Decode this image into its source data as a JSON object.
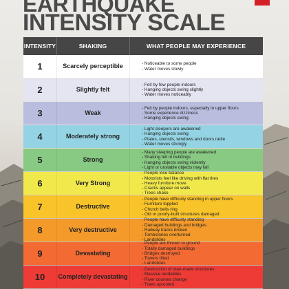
{
  "title": {
    "line1": "EARTHQUAKE",
    "line2": "INTENSITY SCALE"
  },
  "table": {
    "headers": {
      "intensity": "INTENSITY",
      "shaking": "SHAKING",
      "experience": "WHAT PEOPLE MAY EXPERIENCE"
    },
    "rows": [
      {
        "intensity": "1",
        "shaking": "Scarcely perceptible",
        "color": "#ffffff",
        "experience": [
          "- Noticeable to some people",
          "- Water moves slowly"
        ]
      },
      {
        "intensity": "2",
        "shaking": "Slightly felt",
        "color": "#e5e4f1",
        "experience": [
          "- Felt by few people indoors",
          "- Hanging objects swing slightly",
          "- Water moves noticeably"
        ]
      },
      {
        "intensity": "3",
        "shaking": "Weak",
        "color": "#b9bedf",
        "experience": [
          "- Felt by people indoors, especially in upper floors",
          "- Some experience dizziness",
          "- Hanging objects swing"
        ]
      },
      {
        "intensity": "4",
        "shaking": "Moderately strong",
        "color": "#94d3e3",
        "experience": [
          "- Light sleepers are awakened",
          "- Hanging objects swing",
          "- Plates, utensils, windows and doors rattle",
          "- Water moves strongly"
        ]
      },
      {
        "intensity": "5",
        "shaking": "Strong",
        "color": "#88c983",
        "experience": [
          "- Many sleeping people are awakened",
          "- Shaking felt in buildings",
          "- Hanging objects swing violently",
          "- Light or unstable objects may fall"
        ]
      },
      {
        "intensity": "6",
        "shaking": "Very Strong",
        "color": "#f1e94c",
        "experience": [
          "- People lose balance",
          "- Motorists feel like driving with flat tires",
          "- Heavy furniture move",
          "- Cracks appear on walls",
          "- Trees shake"
        ]
      },
      {
        "intensity": "7",
        "shaking": "Destructive",
        "color": "#f9c32a",
        "experience": [
          "- People have difficulty standing in upper floors",
          "- Furniture toppled",
          "- Church bells ring",
          "- Old or poorly-built structures damaged"
        ]
      },
      {
        "intensity": "8",
        "shaking": "Very destructive",
        "color": "#f39a2b",
        "experience": [
          "- People have difficulty standing",
          "- Damaged buildings and bridges",
          "- Railway tracks broken",
          "- Tombstones overturned",
          "- Landslides"
        ]
      },
      {
        "intensity": "9",
        "shaking": "Devastating",
        "color": "#f36a33",
        "experience": [
          "- People are thrown to ground",
          "- Totally damaged buildings",
          "- Bridges destroyed",
          "- Towers tilted",
          "- Landslides"
        ]
      },
      {
        "intensity": "10",
        "shaking": "Completely devastating",
        "color": "#ee3b36",
        "experience": [
          "- Destruction of man-made structures",
          "- Massive landslides",
          "- River courses change",
          "- Trees uprooted"
        ]
      }
    ]
  }
}
